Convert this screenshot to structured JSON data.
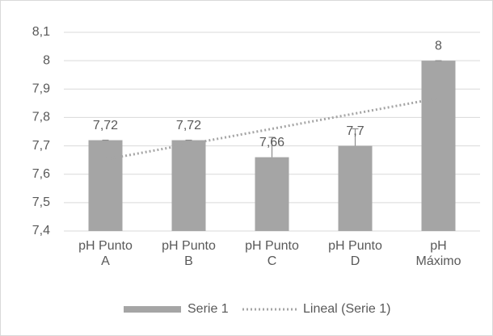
{
  "chart_data": {
    "type": "bar",
    "categories": [
      "pH Punto A",
      "pH Punto B",
      "pH Punto C",
      "pH Punto D",
      "pH Máximo"
    ],
    "series": [
      {
        "name": "Serie 1",
        "color": "#a5a5a5",
        "values": [
          7.72,
          7.72,
          7.66,
          7.7,
          8
        ],
        "value_labels": [
          "7,72",
          "7,72",
          "7,66",
          "7,7",
          "8"
        ],
        "errors": [
          0,
          0,
          0.07,
          0.06,
          0
        ]
      }
    ],
    "trendline": {
      "name": "Lineal (Serie 1)",
      "type": "linear",
      "color": "#a5a5a5"
    },
    "ylim": [
      7.4,
      8.1
    ],
    "yticks": [
      {
        "value": 7.4,
        "label": "7,4"
      },
      {
        "value": 7.5,
        "label": "7,5"
      },
      {
        "value": 7.6,
        "label": "7,6"
      },
      {
        "value": 7.7,
        "label": "7,7"
      },
      {
        "value": 7.8,
        "label": "7,8"
      },
      {
        "value": 7.9,
        "label": "7,9"
      },
      8,
      {
        "value": 8.1,
        "label": "8,1"
      }
    ],
    "grid": true,
    "legend": "bottom"
  }
}
